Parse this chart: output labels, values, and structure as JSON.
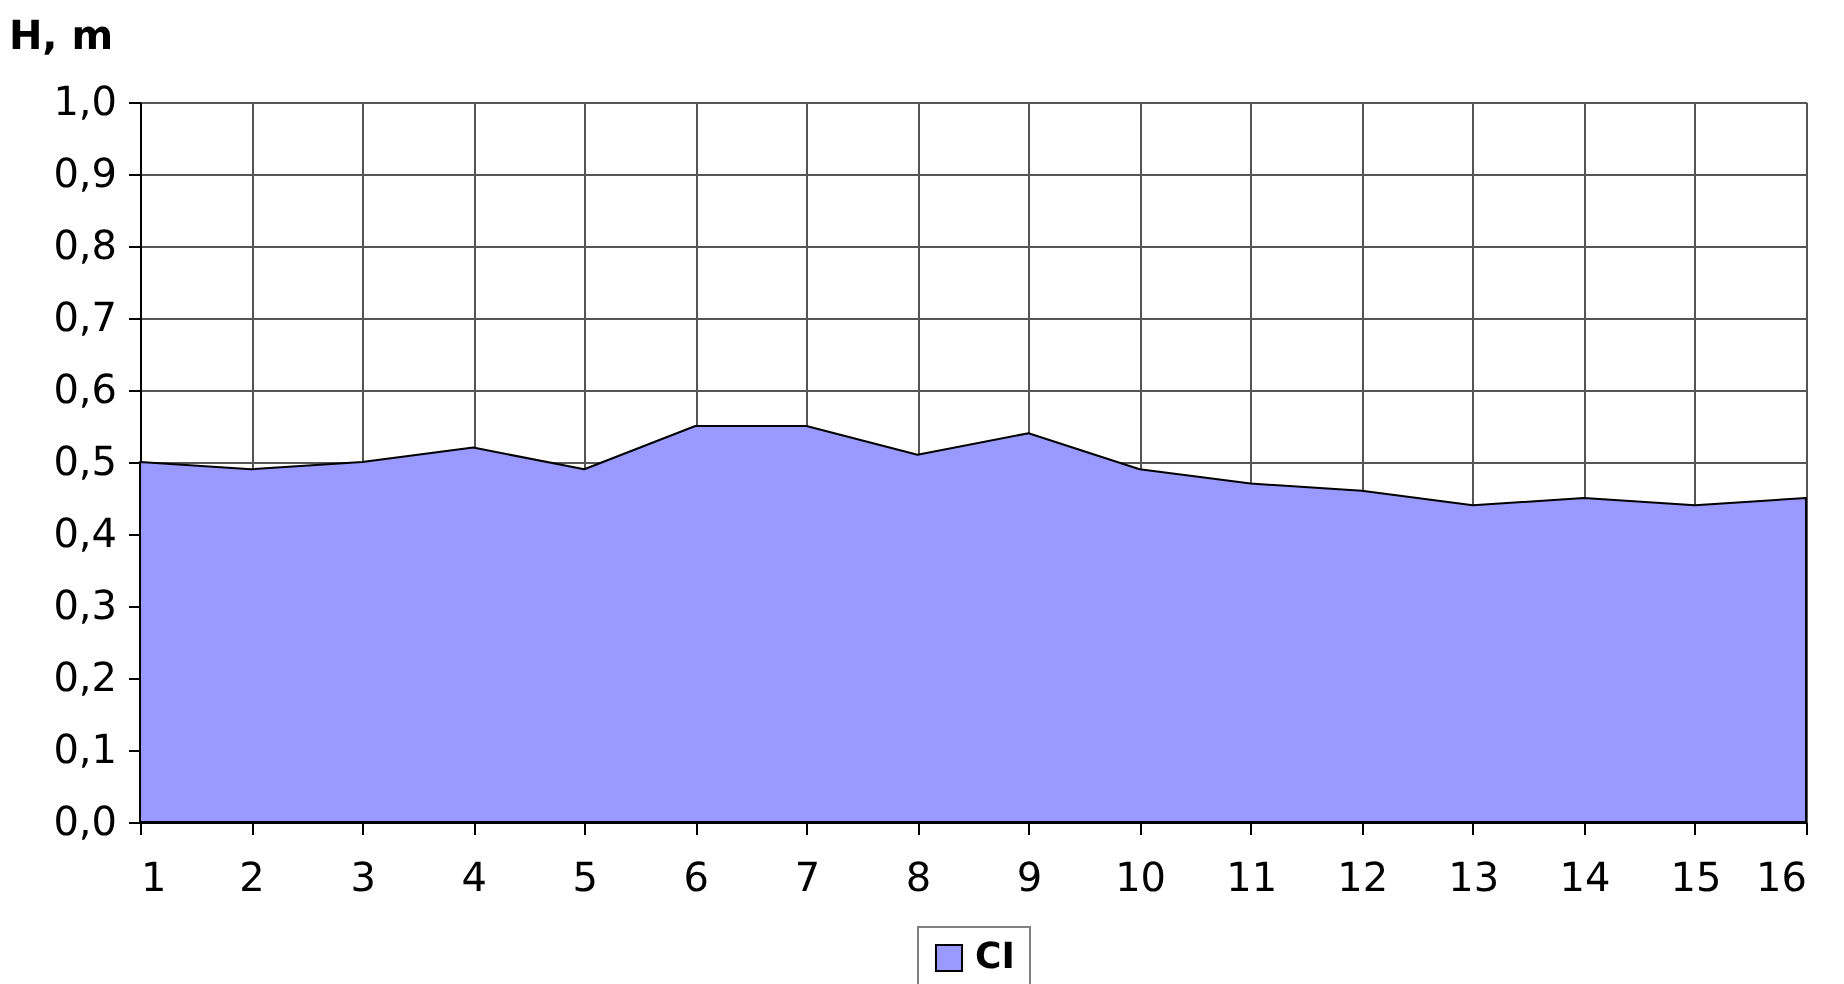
{
  "chart_data": {
    "type": "area",
    "ylabel": "H, m",
    "x": [
      1,
      2,
      3,
      4,
      5,
      6,
      7,
      8,
      9,
      10,
      11,
      12,
      13,
      14,
      15,
      16
    ],
    "xlim": [
      1,
      16
    ],
    "xticks": [
      1,
      2,
      3,
      4,
      5,
      6,
      7,
      8,
      9,
      10,
      11,
      12,
      13,
      14,
      15,
      16
    ],
    "ylim": [
      0,
      1
    ],
    "yticks": [
      {
        "value": 0,
        "label": "0,0"
      },
      {
        "value": 0.1,
        "label": "0,1"
      },
      {
        "value": 0.2,
        "label": "0,2"
      },
      {
        "value": 0.3,
        "label": "0,3"
      },
      {
        "value": 0.4,
        "label": "0,4"
      },
      {
        "value": 0.5,
        "label": "0,5"
      },
      {
        "value": 0.6,
        "label": "0,6"
      },
      {
        "value": 0.7,
        "label": "0,7"
      },
      {
        "value": 0.8,
        "label": "0,8"
      },
      {
        "value": 0.9,
        "label": "0,9"
      },
      {
        "value": 1,
        "label": "1,0"
      }
    ],
    "grid": true,
    "legend": "bottom",
    "series": [
      {
        "name": "CI",
        "color": "#9999ff",
        "values": [
          0.5,
          0.49,
          0.5,
          0.52,
          0.49,
          0.55,
          0.55,
          0.51,
          0.54,
          0.49,
          0.47,
          0.46,
          0.44,
          0.45,
          0.44,
          0.45
        ]
      }
    ]
  }
}
